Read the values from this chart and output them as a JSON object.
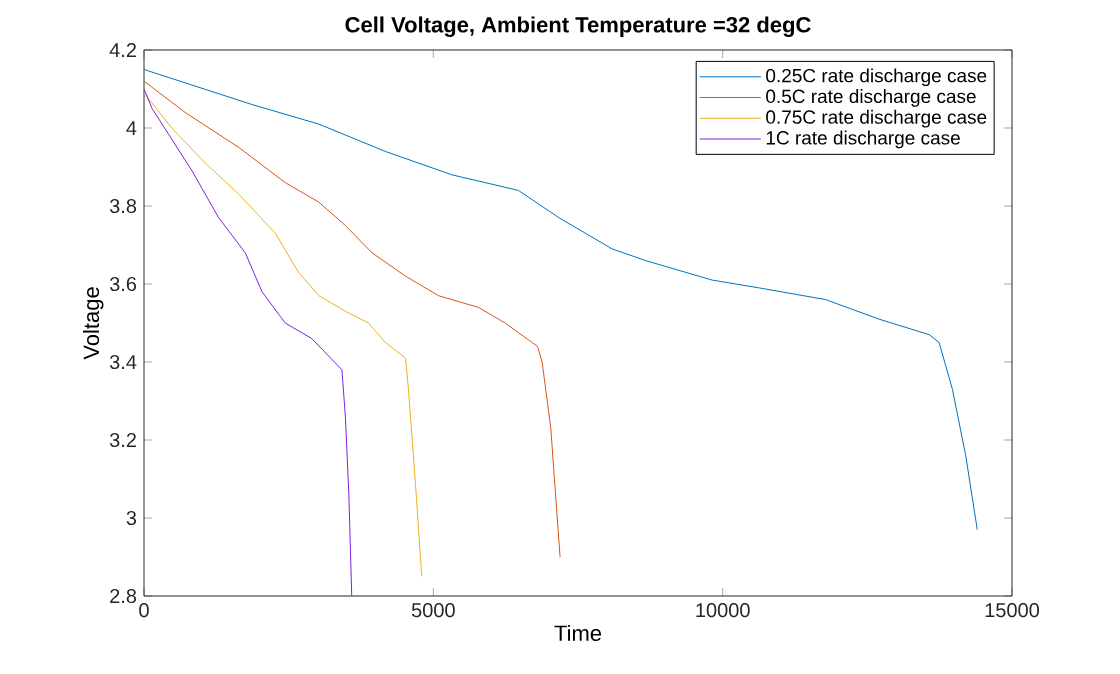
{
  "chart_data": {
    "type": "line",
    "title": "Cell Voltage, Ambient Temperature =32 degC",
    "xlabel": "Time",
    "ylabel": "Voltage",
    "xlim": [
      0,
      15000
    ],
    "ylim": [
      2.8,
      4.2
    ],
    "xticks": [
      0,
      5000,
      10000,
      15000
    ],
    "yticks": [
      2.8,
      3,
      3.2,
      3.4,
      3.6,
      3.8,
      4,
      4.2
    ],
    "legend": "top right",
    "grid": false,
    "marker": "none",
    "line_style": "solid",
    "series": [
      {
        "name": "0.25C rate discharge case",
        "color": "#0072bd",
        "x": [
          0,
          1870,
          3020,
          4170,
          5320,
          6470,
          7170,
          8090,
          8670,
          9820,
          10630,
          11780,
          12700,
          13570,
          13740,
          13970,
          14200,
          14400
        ],
        "values": [
          4.15,
          4.06,
          4.01,
          3.94,
          3.88,
          3.84,
          3.77,
          3.69,
          3.66,
          3.61,
          3.59,
          3.56,
          3.51,
          3.47,
          3.45,
          3.33,
          3.16,
          2.97
        ]
      },
      {
        "name": "0.5C rate discharge case",
        "color": "#d95319",
        "x": [
          0,
          710,
          1640,
          2440,
          3020,
          3480,
          3940,
          4520,
          5090,
          5780,
          6240,
          6800,
          6880,
          7030,
          7190
        ],
        "values": [
          4.12,
          4.04,
          3.95,
          3.86,
          3.81,
          3.75,
          3.68,
          3.62,
          3.57,
          3.54,
          3.5,
          3.44,
          3.4,
          3.23,
          2.9
        ]
      },
      {
        "name": "0.75C rate discharge case",
        "color": "#edb120",
        "x": [
          0,
          480,
          1060,
          1640,
          2270,
          2670,
          3020,
          3480,
          3880,
          4170,
          4520,
          4570,
          4690,
          4800
        ],
        "values": [
          4.09,
          4.0,
          3.91,
          3.83,
          3.73,
          3.63,
          3.57,
          3.53,
          3.5,
          3.45,
          3.41,
          3.33,
          3.09,
          2.85
        ]
      },
      {
        "name": "1C rate discharge case",
        "color": "#7e1fe0",
        "x": [
          0,
          140,
          830,
          1290,
          1750,
          2040,
          2440,
          2900,
          3420,
          3480,
          3540,
          3590
        ],
        "values": [
          4.1,
          4.05,
          3.89,
          3.77,
          3.68,
          3.58,
          3.5,
          3.46,
          3.38,
          3.26,
          3.06,
          2.8
        ]
      }
    ]
  }
}
